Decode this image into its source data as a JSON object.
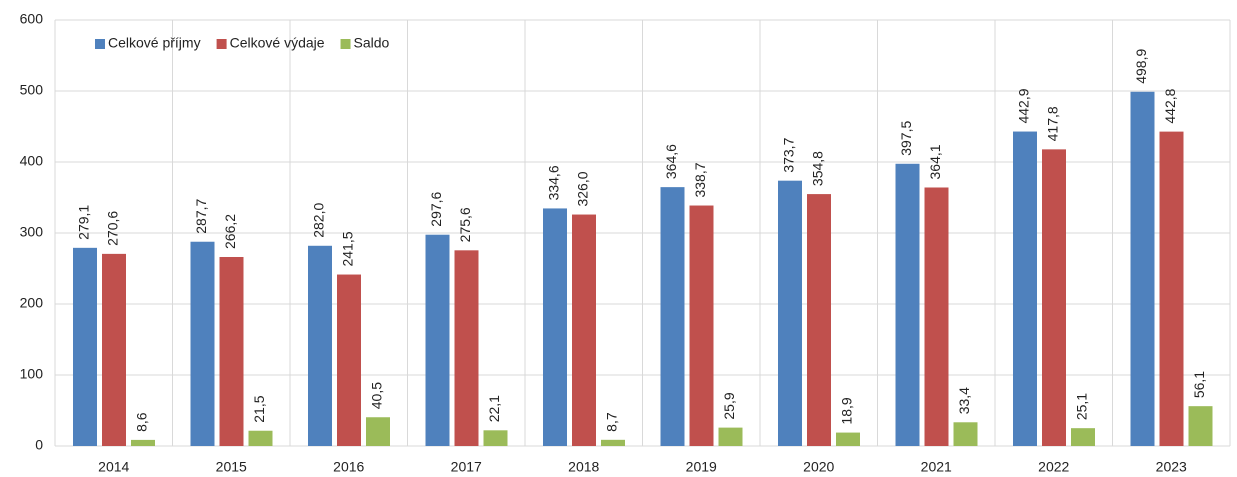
{
  "chart_data": {
    "type": "bar",
    "categories": [
      "2014",
      "2015",
      "2016",
      "2017",
      "2018",
      "2019",
      "2020",
      "2021",
      "2022",
      "2023"
    ],
    "series": [
      {
        "name": "Celkové příjmy",
        "color": "#4f81bd",
        "values": [
          279.1,
          287.7,
          282.0,
          297.6,
          334.6,
          364.6,
          373.7,
          397.5,
          442.9,
          498.9
        ],
        "value_labels": [
          "279,1",
          "287,7",
          "282,0",
          "297,6",
          "334,6",
          "364,6",
          "373,7",
          "397,5",
          "442,9",
          "498,9"
        ]
      },
      {
        "name": "Celkové výdaje",
        "color": "#c0504d",
        "values": [
          270.6,
          266.2,
          241.5,
          275.6,
          326.0,
          338.7,
          354.8,
          364.1,
          417.8,
          442.8
        ],
        "value_labels": [
          "270,6",
          "266,2",
          "241,5",
          "275,6",
          "326,0",
          "338,7",
          "354,8",
          "364,1",
          "417,8",
          "442,8"
        ]
      },
      {
        "name": "Saldo",
        "color": "#9bbb59",
        "values": [
          8.6,
          21.5,
          40.5,
          22.1,
          8.7,
          25.9,
          18.9,
          33.4,
          25.1,
          56.1
        ],
        "value_labels": [
          "8,6",
          "21,5",
          "40,5",
          "22,1",
          "8,7",
          "25,9",
          "18,9",
          "33,4",
          "25,1",
          "56,1"
        ]
      }
    ],
    "ylim": [
      0,
      600
    ],
    "yticks": [
      0,
      100,
      200,
      300,
      400,
      500,
      600
    ],
    "grid": true,
    "legend": "top-left"
  }
}
